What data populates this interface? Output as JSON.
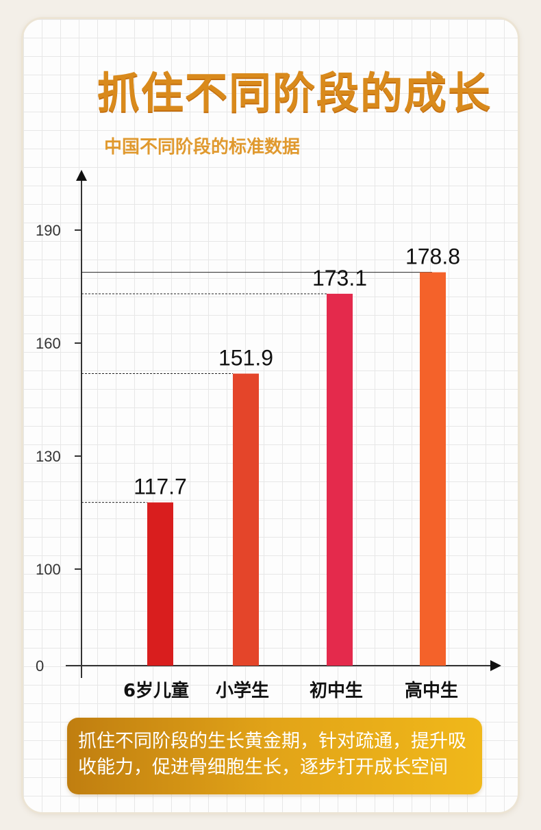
{
  "title": "抓住不同阶段的成长",
  "subtitle": "中国不同阶段的标准数据",
  "footer_text": "抓住不同阶段的生长黄金期，针对疏通，提升吸收能力，促进骨细胞生长，逐步打开成长空间",
  "colors": {
    "title": "#d98a1c",
    "subtitle": "#e0992e",
    "bars": [
      "#d91e1e",
      "#e4452a",
      "#e42a4c",
      "#f4622a"
    ]
  },
  "chart_data": {
    "type": "bar",
    "categories": [
      "6岁儿童",
      "小学生",
      "初中生",
      "高中生"
    ],
    "values": [
      117.7,
      151.9,
      173.1,
      178.8
    ],
    "value_labels": [
      "117.7",
      "151.9",
      "173.1",
      "178.8"
    ],
    "y_ticks": [
      "0",
      "100",
      "130",
      "160",
      "190"
    ],
    "y_tick_values": [
      0,
      100,
      130,
      160,
      190
    ],
    "axis_break": "0 to 100 compressed",
    "grid": false,
    "reference_lines": "dashed from y-axis to each bar top"
  }
}
